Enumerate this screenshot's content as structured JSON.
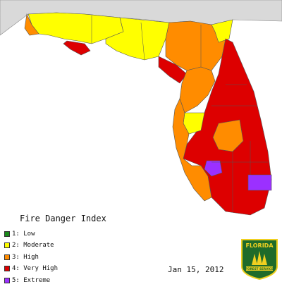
{
  "title": "Fire Danger Index",
  "date": "Jan 15, 2012",
  "logo": {
    "name": "Florida Forest Service",
    "line1": "FLORIDA",
    "line2": "FOREST SERVICE"
  },
  "legend": [
    {
      "level": "1",
      "label": "1: Low",
      "color": "#1a8a1a"
    },
    {
      "level": "2",
      "label": "2: Moderate",
      "color": "#ffff00"
    },
    {
      "level": "3",
      "label": "3: High",
      "color": "#ff8c00"
    },
    {
      "level": "4",
      "label": "4: Very High",
      "color": "#dd0000"
    },
    {
      "level": "5",
      "label": "5: Extreme",
      "color": "#9b30ff"
    }
  ],
  "colors": {
    "background_land": "#d9d9d9",
    "water": "#ffffff",
    "county_border": "#555555"
  }
}
